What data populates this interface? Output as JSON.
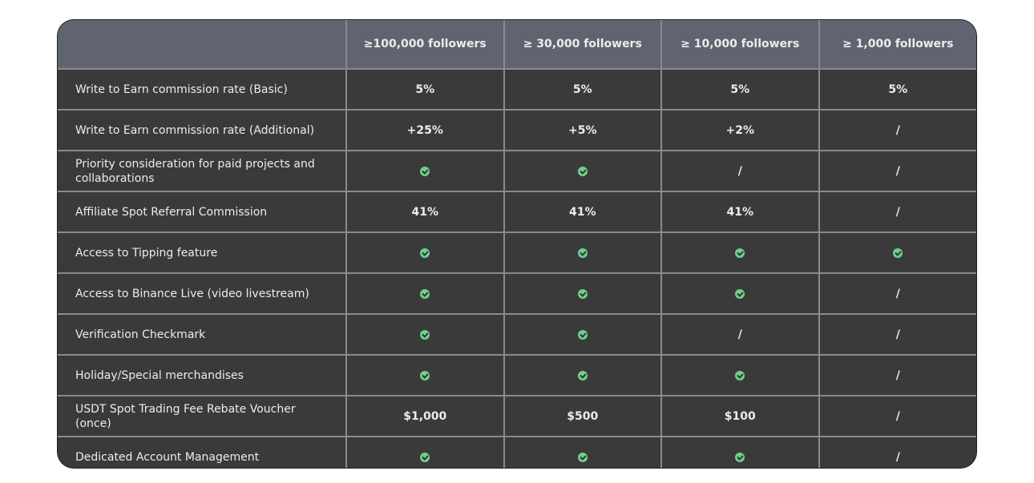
{
  "columns": [
    "",
    "≥100,000 followers",
    "≥ 30,000 followers",
    "≥ 10,000 followers",
    "≥ 1,000 followers"
  ],
  "rows": [
    {
      "label": "Write to Earn commission rate (Basic)",
      "values": [
        "5%",
        "5%",
        "5%",
        "5%"
      ]
    },
    {
      "label": "Write to Earn commission rate (Additional)",
      "values": [
        "+25%",
        "+5%",
        "+2%",
        "/"
      ]
    },
    {
      "label": "Priority consideration for paid projects and collaborations",
      "values": [
        "check",
        "check",
        "/",
        "/"
      ]
    },
    {
      "label": "Affiliate Spot Referral Commission",
      "values": [
        "41%",
        "41%",
        "41%",
        "/"
      ]
    },
    {
      "label": "Access to Tipping feature",
      "values": [
        "check",
        "check",
        "check",
        "check"
      ]
    },
    {
      "label": "Access to Binance Live (video livestream)",
      "values": [
        "check",
        "check",
        "check",
        "/"
      ]
    },
    {
      "label": "Verification Checkmark",
      "values": [
        "check",
        "check",
        "/",
        "/"
      ]
    },
    {
      "label": "Holiday/Special merchandises",
      "values": [
        "check",
        "check",
        "check",
        "/"
      ]
    },
    {
      "label": "USDT Spot Trading Fee Rebate Voucher (once)",
      "values": [
        "$1,000",
        "$500",
        "$100",
        "/"
      ]
    },
    {
      "label": "Dedicated Account Management",
      "values": [
        "check",
        "check",
        "check",
        "/"
      ]
    }
  ],
  "colors": {
    "header_bg": "#5f6470",
    "body_bg": "#3a3a3a",
    "check": "#6fd08f"
  }
}
